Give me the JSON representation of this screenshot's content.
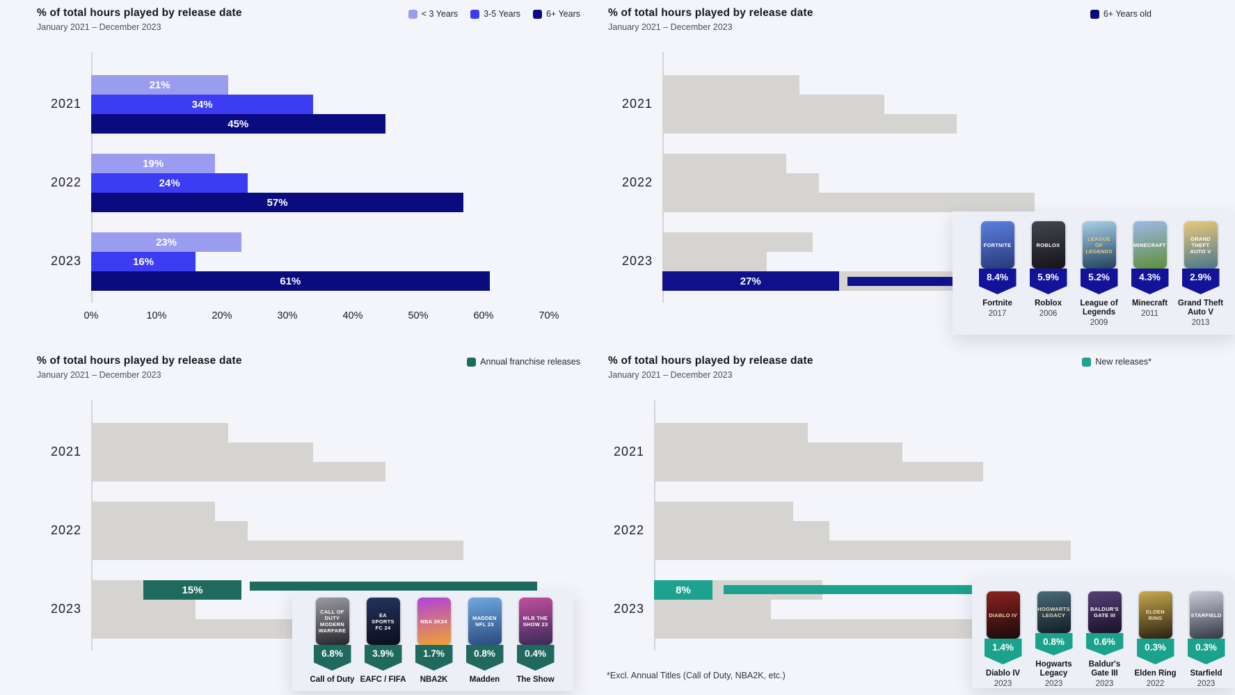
{
  "colors": {
    "page_background": "#f4f5fa",
    "panel_background": "#edeff7",
    "gray_bar": "#d5d4d1",
    "axis_line": "#d3d3da",
    "navy": "#0b0b80",
    "teal_dark": "#1e6b5e",
    "teal_bright": "#1ca28e"
  },
  "chart_data": [
    {
      "id": "age-mix-by-year",
      "type": "bar",
      "orientation": "horizontal",
      "grid": false,
      "legend_position": "top-right",
      "title": "% of total hours played by release date",
      "subtitle": "January 2021 – December 2023",
      "categories": [
        "2021",
        "2022",
        "2023"
      ],
      "series": [
        {
          "name": "< 3 Years",
          "color": "#9a9cf0",
          "values": [
            21,
            19,
            23
          ],
          "labels": [
            "21%",
            "19%",
            "23%"
          ]
        },
        {
          "name": "3-5 Years",
          "color": "#3c3df2",
          "values": [
            34,
            24,
            16
          ],
          "labels": [
            "34%",
            "24%",
            "16%"
          ]
        },
        {
          "name": "6+ Years",
          "color": "#0b0b80",
          "values": [
            45,
            57,
            61
          ],
          "labels": [
            "45%",
            "57%",
            "61%"
          ]
        }
      ],
      "x_ticks": [
        "0%",
        "10%",
        "20%",
        "30%",
        "40%",
        "50%",
        "60%",
        "70%"
      ],
      "xlim": [
        0,
        70
      ]
    },
    {
      "id": "six-plus-year-old-games",
      "type": "bar",
      "orientation": "horizontal",
      "grid": false,
      "title": "% of total hours played by release date",
      "subtitle": "January 2021 – December 2023",
      "legend": {
        "label": "6+ Years old",
        "color": "#0b0b80"
      },
      "categories": [
        "2021",
        "2022",
        "2023"
      ],
      "gray_color": "#d5d4d1",
      "gray_values": [
        [
          21,
          34,
          45
        ],
        [
          19,
          24,
          57
        ],
        [
          23,
          16,
          61
        ]
      ],
      "highlight": {
        "category": "2023",
        "series": "6+ Years",
        "value": 27,
        "offset": 0,
        "label": "27%",
        "color": "#10108c"
      },
      "badge_color": "#13139a",
      "games": [
        {
          "name": "Fortnite",
          "year": "2017",
          "pct": "8.4%",
          "cover": {
            "c1": "#5b80e0",
            "c2": "#283a78",
            "text": "FORTNITE",
            "tc": "#ffffff"
          }
        },
        {
          "name": "Roblox",
          "year": "2006",
          "pct": "5.9%",
          "cover": {
            "c1": "#45454e",
            "c2": "#141419",
            "text": "ROBLOX",
            "tc": "#ffffff"
          }
        },
        {
          "name": "League of Legends",
          "year": "2009",
          "pct": "5.2%",
          "cover": {
            "c1": "#a9cfe8",
            "c2": "#23415e",
            "text": "LEAGUE OF LEGENDS",
            "tc": "#e9c973"
          }
        },
        {
          "name": "Minecraft",
          "year": "2011",
          "pct": "4.3%",
          "cover": {
            "c1": "#9cb8e8",
            "c2": "#5e8f3a",
            "text": "MINECRAFT",
            "tc": "#ffffff"
          }
        },
        {
          "name": "Grand Theft Auto V",
          "year": "2013",
          "pct": "2.9%",
          "cover": {
            "c1": "#e9c87a",
            "c2": "#49798c",
            "text": "GRAND THEFT AUTO V",
            "tc": "#ffffff"
          }
        }
      ]
    },
    {
      "id": "annual-franchise-releases",
      "type": "bar",
      "orientation": "horizontal",
      "grid": false,
      "title": "% of total hours played by release date",
      "subtitle": "January 2021 – December 2023",
      "legend": {
        "label": "Annual franchise releases",
        "color": "#1e6b5e"
      },
      "categories": [
        "2021",
        "2022",
        "2023"
      ],
      "gray_color": "#d5d4d1",
      "gray_values": [
        [
          21,
          34,
          45
        ],
        [
          19,
          24,
          57
        ],
        [
          23,
          16,
          61
        ]
      ],
      "highlight": {
        "category": "2023",
        "series": "< 3 Years",
        "value": 15,
        "offset": 8,
        "label": "15%",
        "color": "#1e6b5e"
      },
      "badge_color": "#20695e",
      "games": [
        {
          "name": "Call of Duty",
          "pct": "6.8%",
          "cover": {
            "c1": "#9a9aa0",
            "c2": "#26262c",
            "text": "CALL OF DUTY MODERN WARFARE",
            "tc": "#ffffff"
          }
        },
        {
          "name": "EAFC / FIFA",
          "pct": "3.9%",
          "cover": {
            "c1": "#24345e",
            "c2": "#0a0e1c",
            "text": "EA SPORTS FC 24",
            "tc": "#ffffff"
          }
        },
        {
          "name": "NBA2K",
          "pct": "1.7%",
          "cover": {
            "c1": "#b043d8",
            "c2": "#f0a233",
            "text": "NBA 2K24",
            "tc": "#ffffff"
          }
        },
        {
          "name": "Madden",
          "pct": "0.8%",
          "cover": {
            "c1": "#6ea9e0",
            "c2": "#2a4a7c",
            "text": "MADDEN NFL 23",
            "tc": "#ffffff"
          }
        },
        {
          "name": "The Show",
          "pct": "0.4%",
          "cover": {
            "c1": "#c24f9e",
            "c2": "#392a58",
            "text": "MLB THE SHOW 23",
            "tc": "#ffffff"
          }
        }
      ]
    },
    {
      "id": "new-releases",
      "type": "bar",
      "orientation": "horizontal",
      "grid": false,
      "title": "% of total hours played by release date",
      "subtitle": "January 2021 – December 2023",
      "legend": {
        "label": "New releases*",
        "color": "#1ca28e"
      },
      "footnote": "*Excl. Annual Titles (Call of Duty, NBA2K, etc.)",
      "categories": [
        "2021",
        "2022",
        "2023"
      ],
      "gray_color": "#d5d4d1",
      "gray_values": [
        [
          21,
          34,
          45
        ],
        [
          19,
          24,
          57
        ],
        [
          23,
          16,
          61
        ]
      ],
      "highlight": {
        "category": "2023",
        "series": "< 3 Years",
        "value": 8,
        "offset": 0,
        "label": "8%",
        "color": "#1ca28e"
      },
      "badge_color": "#1ba28d",
      "games": [
        {
          "name": "Diablo IV",
          "year": "2023",
          "pct": "1.4%",
          "cover": {
            "c1": "#8c2020",
            "c2": "#190b0b",
            "text": "DIABLO IV",
            "tc": "#e8d9b0"
          }
        },
        {
          "name": "Hogwarts Legacy",
          "year": "2023",
          "pct": "0.8%",
          "cover": {
            "c1": "#4a6a78",
            "c2": "#121e26",
            "text": "HOGWARTS LEGACY",
            "tc": "#e8dcc0"
          }
        },
        {
          "name": "Baldur's Gate III",
          "year": "2023",
          "pct": "0.6%",
          "cover": {
            "c1": "#553f78",
            "c2": "#191229",
            "text": "BALDUR'S GATE III",
            "tc": "#ffffff"
          }
        },
        {
          "name": "Elden Ring",
          "year": "2022",
          "pct": "0.3%",
          "cover": {
            "c1": "#c9a84c",
            "c2": "#292013",
            "text": "ELDEN RING",
            "tc": "#f0e2b8"
          }
        },
        {
          "name": "Starfield",
          "year": "2023",
          "pct": "0.3%",
          "cover": {
            "c1": "#c9ccd8",
            "c2": "#343744",
            "text": "STARFIELD",
            "tc": "#ffffff"
          }
        }
      ]
    }
  ]
}
